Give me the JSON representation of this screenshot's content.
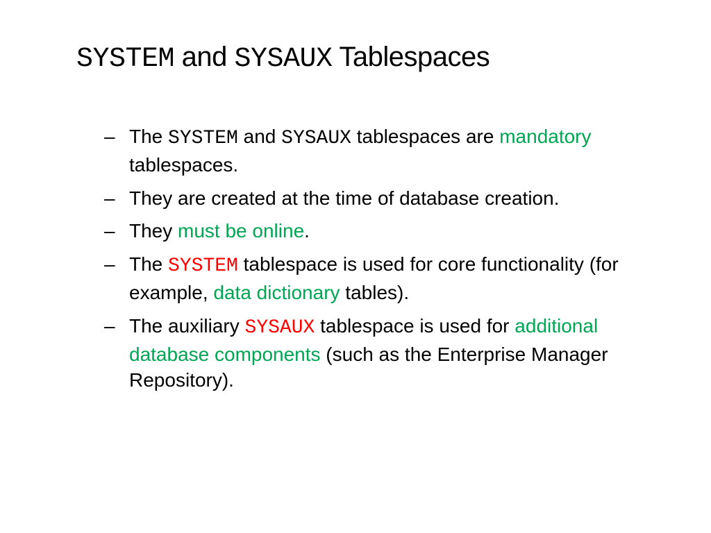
{
  "title": {
    "part1_mono": "SYSTEM",
    "part2": " and ",
    "part3_mono": "SYSAUX",
    "part4": " Tablespaces"
  },
  "bullets": [
    {
      "segments": [
        {
          "text": "The ",
          "class": ""
        },
        {
          "text": "SYSTEM",
          "class": "mono"
        },
        {
          "text": " and ",
          "class": ""
        },
        {
          "text": "SYSAUX",
          "class": "mono"
        },
        {
          "text": " tablespaces are ",
          "class": ""
        },
        {
          "text": "mandatory",
          "class": "green"
        },
        {
          "text": " tablespaces.",
          "class": ""
        }
      ]
    },
    {
      "segments": [
        {
          "text": "They are created at the time of database creation.",
          "class": ""
        }
      ]
    },
    {
      "segments": [
        {
          "text": "They ",
          "class": ""
        },
        {
          "text": "must be online",
          "class": "green"
        },
        {
          "text": ".",
          "class": ""
        }
      ]
    },
    {
      "segments": [
        {
          "text": "The ",
          "class": ""
        },
        {
          "text": "SYSTEM",
          "class": "mono red"
        },
        {
          "text": " tablespace is used for core functionality (for example, ",
          "class": ""
        },
        {
          "text": "data dictionary",
          "class": "green"
        },
        {
          "text": " tables).",
          "class": ""
        }
      ]
    },
    {
      "segments": [
        {
          "text": "The auxiliary ",
          "class": ""
        },
        {
          "text": "SYSAUX",
          "class": "mono red"
        },
        {
          "text": " tablespace is used for ",
          "class": ""
        },
        {
          "text": "additional database components",
          "class": "green"
        },
        {
          "text": " (such as the Enterprise Manager Repository).",
          "class": ""
        }
      ]
    }
  ],
  "colors": {
    "green": "#00a651",
    "red": "#ff0000",
    "text": "#000000",
    "background": "#ffffff"
  },
  "fonts": {
    "title_size": 40,
    "body_size": 28,
    "mono_family": "Courier New"
  }
}
